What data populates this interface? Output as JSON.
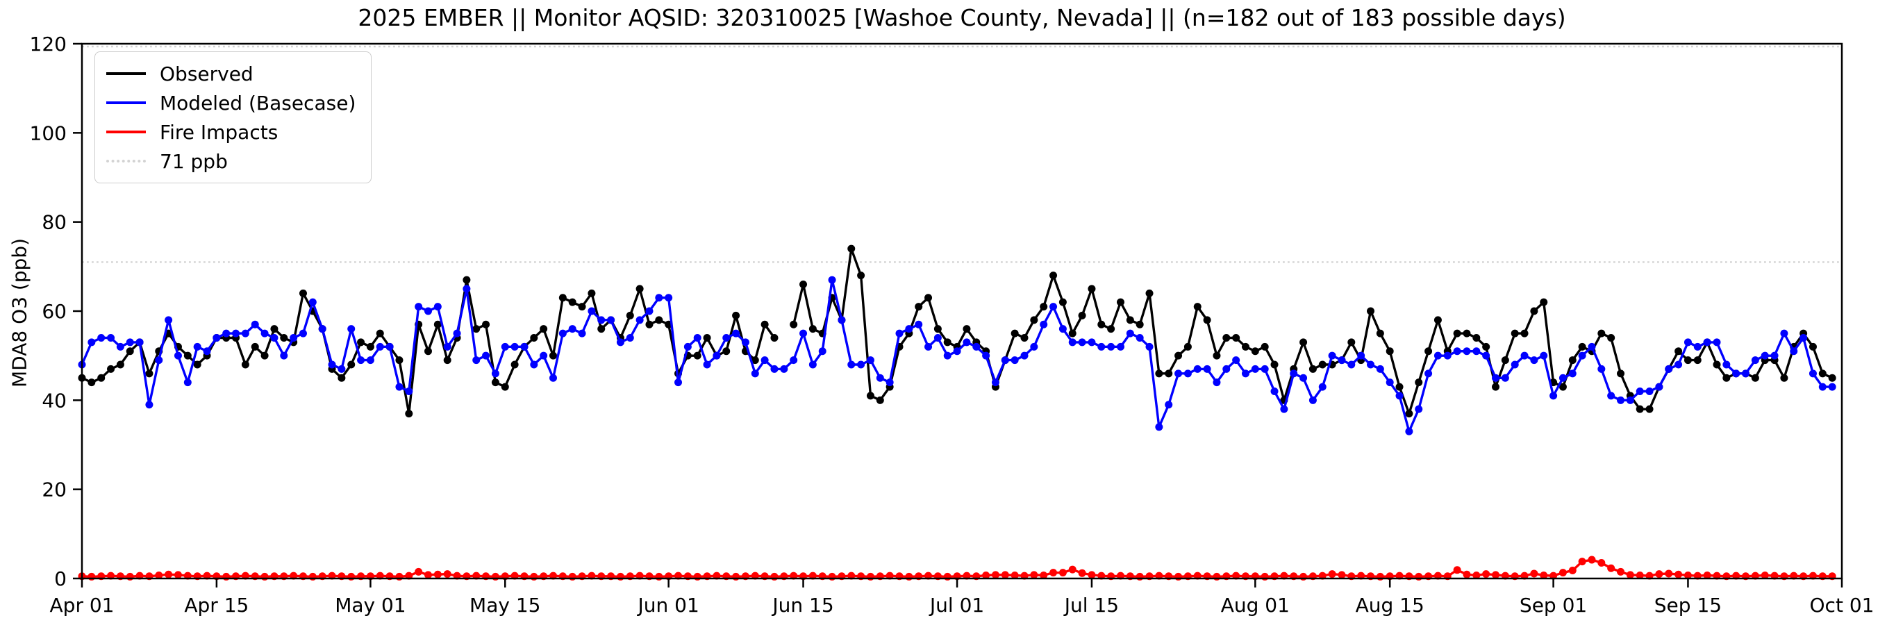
{
  "chart_data": {
    "type": "line",
    "title": "2025 EMBER || Monitor AQSID: 320310025 [Washoe County, Nevada] || (n=182 out of 183 possible days)",
    "ylabel": "MDA8 O3 (ppb)",
    "ylim": [
      0,
      120
    ],
    "yticks": [
      0,
      20,
      40,
      60,
      80,
      100,
      120
    ],
    "x_span_days": 183,
    "xticks": [
      {
        "day": 0,
        "label": "Apr 01"
      },
      {
        "day": 14,
        "label": "Apr 15"
      },
      {
        "day": 30,
        "label": "May 01"
      },
      {
        "day": 44,
        "label": "May 15"
      },
      {
        "day": 61,
        "label": "Jun 01"
      },
      {
        "day": 75,
        "label": "Jun 15"
      },
      {
        "day": 91,
        "label": "Jul 01"
      },
      {
        "day": 105,
        "label": "Jul 15"
      },
      {
        "day": 122,
        "label": "Aug 01"
      },
      {
        "day": 136,
        "label": "Aug 15"
      },
      {
        "day": 153,
        "label": "Sep 01"
      },
      {
        "day": 167,
        "label": "Sep 15"
      },
      {
        "day": 183,
        "label": "Oct 01"
      }
    ],
    "grid": false,
    "legend_position": "upper-left",
    "reference_lines": [
      {
        "value": 71,
        "label": "71 ppb",
        "color": "#d3d3d3",
        "style": "dotted"
      },
      {
        "value": 120,
        "label": "",
        "color": "#d3d3d3",
        "style": "dotted"
      }
    ],
    "series": [
      {
        "name": "Observed",
        "color": "#000000",
        "marker": "circle",
        "values": [
          45,
          44,
          45,
          47,
          48,
          51,
          53,
          46,
          51,
          55,
          52,
          50,
          48,
          50,
          54,
          54,
          54,
          48,
          52,
          50,
          56,
          54,
          53,
          64,
          60,
          56,
          47,
          45,
          48,
          53,
          52,
          55,
          52,
          49,
          37,
          57,
          51,
          57,
          49,
          54,
          67,
          56,
          57,
          44,
          43,
          48,
          52,
          54,
          56,
          50,
          63,
          62,
          61,
          64,
          56,
          58,
          54,
          59,
          65,
          57,
          58,
          57,
          46,
          50,
          50,
          54,
          50,
          51,
          59,
          51,
          49,
          57,
          54,
          null,
          57,
          66,
          56,
          55,
          63,
          58,
          74,
          68,
          41,
          40,
          43,
          52,
          55,
          61,
          63,
          56,
          53,
          52,
          56,
          53,
          51,
          43,
          49,
          55,
          54,
          58,
          61,
          68,
          62,
          55,
          59,
          65,
          57,
          56,
          62,
          58,
          57,
          64,
          46,
          46,
          50,
          52,
          61,
          58,
          50,
          54,
          54,
          52,
          51,
          52,
          48,
          40,
          47,
          53,
          47,
          48,
          48,
          49,
          53,
          49,
          60,
          55,
          51,
          43,
          37,
          44,
          51,
          58,
          51,
          55,
          55,
          54,
          52,
          43,
          49,
          55,
          55,
          60,
          62,
          44,
          43,
          49,
          52,
          51,
          55,
          54,
          46,
          41,
          38,
          38,
          43,
          47,
          51,
          49,
          49,
          53,
          48,
          45,
          46,
          46,
          45,
          49,
          49,
          45,
          52,
          55,
          52,
          46,
          45
        ]
      },
      {
        "name": "Modeled (Basecase)",
        "color": "#0000ff",
        "marker": "circle",
        "values": [
          48,
          53,
          54,
          54,
          52,
          53,
          53,
          39,
          49,
          58,
          50,
          44,
          52,
          51,
          54,
          55,
          55,
          55,
          57,
          55,
          54,
          50,
          54,
          55,
          62,
          56,
          48,
          47,
          56,
          49,
          49,
          52,
          52,
          43,
          42,
          61,
          60,
          61,
          52,
          55,
          65,
          49,
          50,
          46,
          52,
          52,
          52,
          48,
          50,
          45,
          55,
          56,
          55,
          60,
          58,
          58,
          53,
          54,
          58,
          60,
          63,
          63,
          44,
          52,
          54,
          48,
          50,
          54,
          55,
          53,
          46,
          49,
          47,
          47,
          49,
          55,
          48,
          51,
          67,
          58,
          48,
          48,
          49,
          45,
          44,
          55,
          56,
          57,
          52,
          54,
          50,
          51,
          53,
          52,
          50,
          44,
          49,
          49,
          50,
          52,
          57,
          61,
          56,
          53,
          53,
          53,
          52,
          52,
          52,
          55,
          54,
          52,
          34,
          39,
          46,
          46,
          47,
          47,
          44,
          47,
          49,
          46,
          47,
          47,
          42,
          38,
          46,
          45,
          40,
          43,
          50,
          49,
          48,
          50,
          48,
          47,
          44,
          41,
          33,
          38,
          46,
          50,
          50,
          51,
          51,
          51,
          50,
          45,
          45,
          48,
          50,
          49,
          50,
          41,
          45,
          46,
          50,
          52,
          47,
          41,
          40,
          40,
          42,
          42,
          43,
          47,
          48,
          53,
          52,
          53,
          53,
          48,
          46,
          46,
          49,
          50,
          50,
          55,
          51,
          54,
          46,
          43,
          43
        ]
      },
      {
        "name": "Fire Impacts",
        "color": "#ff0000",
        "marker": "circle",
        "values": [
          0.5,
          0.4,
          0.5,
          0.6,
          0.5,
          0.4,
          0.6,
          0.5,
          0.7,
          0.9,
          0.8,
          0.6,
          0.5,
          0.6,
          0.5,
          0.4,
          0.5,
          0.6,
          0.5,
          0.4,
          0.5,
          0.5,
          0.6,
          0.5,
          0.4,
          0.5,
          0.6,
          0.5,
          0.4,
          0.5,
          0.5,
          0.6,
          0.5,
          0.4,
          0.6,
          1.5,
          0.8,
          0.9,
          1.0,
          0.6,
          0.5,
          0.6,
          0.5,
          0.4,
          0.5,
          0.6,
          0.5,
          0.4,
          0.5,
          0.6,
          0.5,
          0.4,
          0.5,
          0.6,
          0.5,
          0.5,
          0.4,
          0.5,
          0.6,
          0.5,
          0.4,
          0.5,
          0.6,
          0.5,
          0.4,
          0.5,
          0.6,
          0.5,
          0.4,
          0.5,
          0.6,
          0.5,
          0.4,
          0.5,
          0.6,
          0.5,
          0.6,
          0.5,
          0.4,
          0.5,
          0.6,
          0.5,
          0.4,
          0.5,
          0.6,
          0.5,
          0.4,
          0.5,
          0.6,
          0.5,
          0.4,
          0.5,
          0.6,
          0.5,
          0.7,
          0.8,
          0.8,
          0.7,
          0.6,
          0.8,
          0.7,
          1.3,
          1.3,
          2.0,
          1.2,
          0.8,
          0.6,
          0.5,
          0.6,
          0.5,
          0.4,
          0.5,
          0.6,
          0.5,
          0.4,
          0.5,
          0.6,
          0.5,
          0.4,
          0.5,
          0.6,
          0.5,
          0.5,
          0.4,
          0.5,
          0.6,
          0.5,
          0.4,
          0.5,
          0.6,
          1.0,
          0.8,
          0.5,
          0.6,
          0.5,
          0.4,
          0.5,
          0.6,
          0.5,
          0.4,
          0.5,
          0.6,
          0.5,
          1.9,
          0.9,
          0.7,
          1.0,
          0.8,
          0.6,
          0.5,
          0.6,
          1.1,
          0.7,
          0.6,
          1.3,
          1.8,
          3.8,
          4.2,
          3.5,
          2.3,
          1.5,
          0.8,
          0.7,
          0.6,
          1.0,
          1.1,
          0.9,
          0.7,
          0.6,
          0.7,
          0.6,
          0.5,
          0.6,
          0.5,
          0.6,
          0.7,
          0.6,
          0.5,
          0.6,
          0.5,
          0.6,
          0.5,
          0.5
        ]
      }
    ],
    "legend": {
      "entries": [
        {
          "label": "Observed",
          "color": "#000000",
          "style": "solid"
        },
        {
          "label": "Modeled (Basecase)",
          "color": "#0000ff",
          "style": "solid"
        },
        {
          "label": "Fire Impacts",
          "color": "#ff0000",
          "style": "solid"
        },
        {
          "label": "71 ppb",
          "color": "#d3d3d3",
          "style": "dotted"
        }
      ]
    }
  }
}
